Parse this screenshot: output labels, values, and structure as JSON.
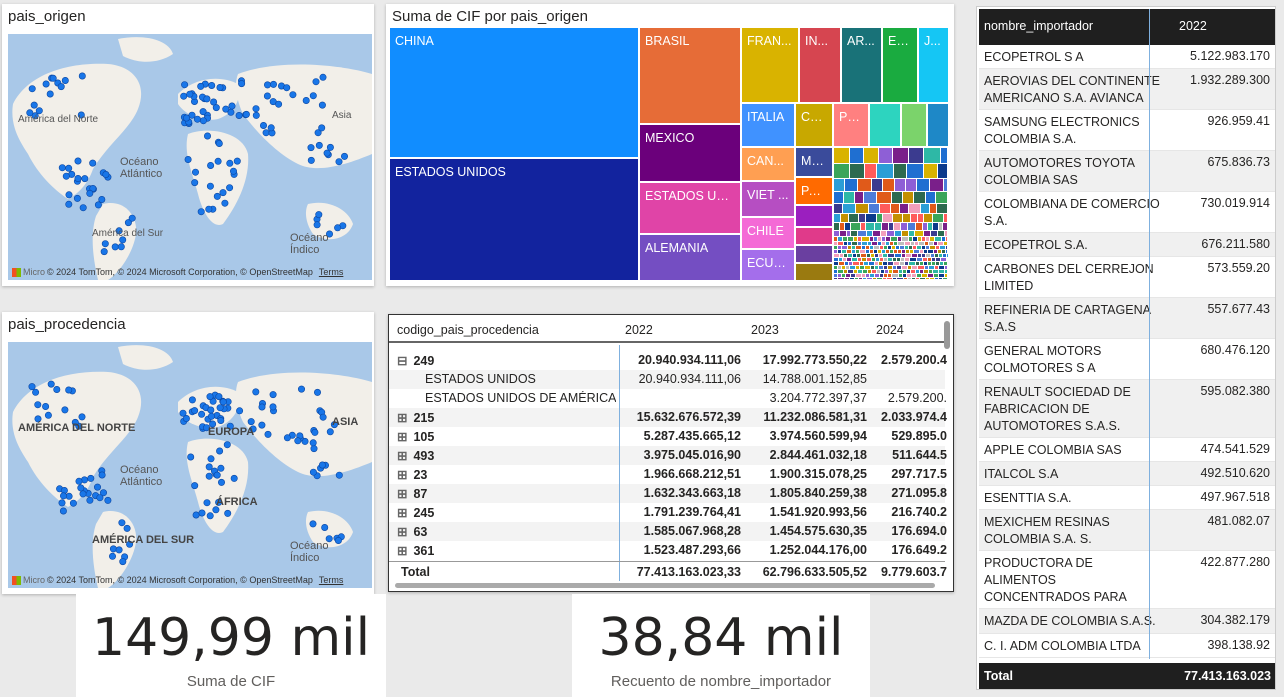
{
  "map1": {
    "title": "pais_origen",
    "labels": [
      "América del Norte",
      "Océano Atlántico",
      "América del Sur",
      "Asia",
      "Océano Índico"
    ],
    "footer": {
      "ms": "Micro",
      "attribution": "© 2024 TomTom, © 2024 Microsoft Corporation, © OpenStreetMap",
      "terms": "Terms"
    }
  },
  "map2": {
    "title": "pais_procedencia",
    "labels": [
      "AMÉRICA DEL NORTE",
      "Océano Atlántico",
      "AMÉRICA DEL SUR",
      "ASIA",
      "EUROPA",
      "ÁFRICA",
      "Océano Índico"
    ],
    "footer": {
      "ms": "Micro",
      "attribution": "© 2024 TomTom, © 2024 Microsoft Corporation, © OpenStreetMap",
      "terms": "Terms"
    }
  },
  "treemap": {
    "title": "Suma de CIF por pais_origen",
    "tiles": [
      {
        "label": "CHINA",
        "color": "#118dff"
      },
      {
        "label": "ESTADOS UNIDOS",
        "color": "#12239e"
      },
      {
        "label": "BRASIL",
        "color": "#e66c37"
      },
      {
        "label": "MEXICO",
        "color": "#6b007b"
      },
      {
        "label": "ESTADOS UN...",
        "color": "#e044a7"
      },
      {
        "label": "ALEMANIA",
        "color": "#744ec2"
      },
      {
        "label": "FRAN...",
        "color": "#d9b300"
      },
      {
        "label": "IN...",
        "color": "#d64550"
      },
      {
        "label": "AR...",
        "color": "#197278"
      },
      {
        "label": "ES...",
        "color": "#1aab40"
      },
      {
        "label": "J...",
        "color": "#15c6f4"
      },
      {
        "label": "ITALIA",
        "color": "#4092ff"
      },
      {
        "label": "CO...",
        "color": "#c8a800"
      },
      {
        "label": "PE...",
        "color": "#ff8080"
      },
      {
        "label": "CAN...",
        "color": "#ff9f52"
      },
      {
        "label": "MÉ...",
        "color": "#3a4b9b"
      },
      {
        "label": "VIET ...",
        "color": "#b64ec2"
      },
      {
        "label": "PAI...",
        "color": "#ff6a00"
      },
      {
        "label": "CHILE",
        "color": "#f46ad6"
      },
      {
        "label": "ECUA...",
        "color": "#a46eeb"
      }
    ]
  },
  "matrix": {
    "headers": [
      "codigo_pais_procedencia",
      "2022",
      "2023",
      "2024"
    ],
    "rows": [
      {
        "label": "249",
        "level": 0,
        "expander": "⊟",
        "v": [
          "20.940.934.111,06",
          "17.992.773.550,22",
          "2.579.200.4"
        ]
      },
      {
        "label": "ESTADOS UNIDOS",
        "level": 1,
        "expander": "",
        "v": [
          "20.940.934.111,06",
          "14.788.001.152,85",
          ""
        ]
      },
      {
        "label": "ESTADOS UNIDOS DE AMÉRICA",
        "level": 1,
        "expander": "",
        "v": [
          "",
          "3.204.772.397,37",
          "2.579.200."
        ]
      },
      {
        "label": "215",
        "level": 0,
        "expander": "⊞",
        "v": [
          "15.632.676.572,39",
          "11.232.086.581,31",
          "2.033.974.4"
        ]
      },
      {
        "label": "105",
        "level": 0,
        "expander": "⊞",
        "v": [
          "5.287.435.665,12",
          "3.974.560.599,94",
          "529.895.0"
        ]
      },
      {
        "label": "493",
        "level": 0,
        "expander": "⊞",
        "v": [
          "3.975.045.016,90",
          "2.844.461.032,18",
          "511.644.5"
        ]
      },
      {
        "label": "23",
        "level": 0,
        "expander": "⊞",
        "v": [
          "1.966.668.212,51",
          "1.900.315.078,25",
          "297.717.5"
        ]
      },
      {
        "label": "87",
        "level": 0,
        "expander": "⊞",
        "v": [
          "1.632.343.663,18",
          "1.805.840.259,38",
          "271.095.8"
        ]
      },
      {
        "label": "245",
        "level": 0,
        "expander": "⊞",
        "v": [
          "1.791.239.764,41",
          "1.541.920.993,56",
          "216.740.2"
        ]
      },
      {
        "label": "63",
        "level": 0,
        "expander": "⊞",
        "v": [
          "1.585.067.968,28",
          "1.454.575.630,35",
          "176.694.0"
        ]
      },
      {
        "label": "361",
        "level": 0,
        "expander": "⊞",
        "v": [
          "1.523.487.293,66",
          "1.252.044.176,00",
          "176.649.2"
        ]
      }
    ],
    "total": {
      "label": "Total",
      "v": [
        "77.413.163.023,33",
        "62.796.633.505,52",
        "9.779.603.7"
      ]
    }
  },
  "kpi1": {
    "value": "149,99 mil ...",
    "label": "Suma de CIF"
  },
  "kpi2": {
    "value": "38,84 mil",
    "label": "Recuento de nombre_importador"
  },
  "table": {
    "headers": [
      "nombre_importador",
      "2022"
    ],
    "rows": [
      {
        "name": "ECOPETROL S A",
        "value": "5.122.983.170"
      },
      {
        "name": "AEROVIAS DEL CONTINENTE AMERICANO S.A. AVIANCA",
        "value": "1.932.289.300"
      },
      {
        "name": "SAMSUNG ELECTRONICS COLOMBIA S.A.",
        "value": "926.959.41"
      },
      {
        "name": "AUTOMOTORES TOYOTA COLOMBIA SAS",
        "value": "675.836.73"
      },
      {
        "name": "COLOMBIANA DE COMERCIO S.A.",
        "value": "730.019.914"
      },
      {
        "name": "ECOPETROL S.A.",
        "value": "676.211.580"
      },
      {
        "name": "CARBONES DEL CERREJON LIMITED",
        "value": "573.559.20"
      },
      {
        "name": "REFINERIA DE CARTAGENA S.A.S",
        "value": "557.677.43"
      },
      {
        "name": "GENERAL MOTORS COLMOTORES S A",
        "value": "680.476.120"
      },
      {
        "name": "RENAULT SOCIEDAD DE FABRICACION DE AUTOMOTORES S.A.S.",
        "value": "595.082.380"
      },
      {
        "name": "APPLE COLOMBIA SAS",
        "value": "474.541.529"
      },
      {
        "name": "ITALCOL S.A",
        "value": "492.510.620"
      },
      {
        "name": "ESENTTIA S.A.",
        "value": "497.967.518"
      },
      {
        "name": "MEXICHEM RESINAS COLOMBIA S.A. S.",
        "value": "481.082.07"
      },
      {
        "name": "PRODUCTORA DE ALIMENTOS CONCENTRADOS PARA ANIMALES CONTEGRAL",
        "value": "422.877.280"
      },
      {
        "name": "MAZDA DE COLOMBIA S.A.S.",
        "value": "304.382.179"
      },
      {
        "name": "C. I. ADM COLOMBIA LTDA",
        "value": "398.138.92"
      }
    ],
    "total": {
      "label": "Total",
      "value": "77.413.163.023"
    }
  }
}
